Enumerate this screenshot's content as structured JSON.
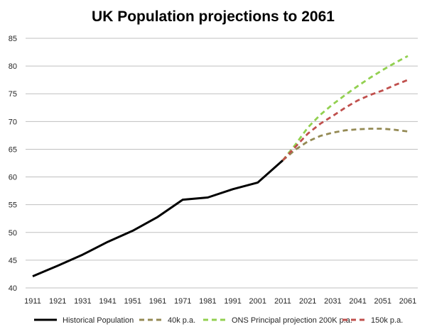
{
  "chart_data": {
    "type": "line",
    "title": "UK Population projections to 2061",
    "xlabel": "",
    "ylabel": "",
    "ylim": [
      40,
      85
    ],
    "yticks": [
      40,
      45,
      50,
      55,
      60,
      65,
      70,
      75,
      80,
      85
    ],
    "categories": [
      "1911",
      "1921",
      "1931",
      "1941",
      "1951",
      "1961",
      "1971",
      "1981",
      "1991",
      "2001",
      "2011",
      "2021",
      "2031",
      "2041",
      "2051",
      "2061"
    ],
    "grid": true,
    "legend_position": "bottom",
    "series": [
      {
        "name": "Historical Population",
        "color": "#000000",
        "dash": "solid",
        "x": [
          1911,
          1921,
          1931,
          1941,
          1951,
          1961,
          1971,
          1981,
          1991,
          2001,
          2011
        ],
        "values": [
          42.1,
          44.0,
          46.0,
          48.3,
          50.3,
          52.8,
          55.9,
          56.3,
          57.8,
          59.0,
          63.0
        ]
      },
      {
        "name": "40k p.a.",
        "color": "#948a54",
        "dash": "dashed",
        "x": [
          2011,
          2016,
          2021,
          2026,
          2031,
          2036,
          2041,
          2046,
          2051,
          2056,
          2061
        ],
        "values": [
          63.0,
          64.9,
          66.4,
          67.4,
          68.0,
          68.4,
          68.6,
          68.7,
          68.7,
          68.5,
          68.2
        ]
      },
      {
        "name": "ONS Principal projection 200K p.a.",
        "color": "#92d050",
        "dash": "dashed",
        "x": [
          2011,
          2016,
          2021,
          2026,
          2031,
          2036,
          2041,
          2046,
          2051,
          2056,
          2061
        ],
        "values": [
          63.0,
          65.8,
          68.9,
          71.2,
          73.1,
          74.8,
          76.4,
          77.9,
          79.3,
          80.6,
          81.8
        ]
      },
      {
        "name": "150k p.a.",
        "color": "#c0504d",
        "dash": "dashed",
        "x": [
          2011,
          2016,
          2021,
          2026,
          2031,
          2036,
          2041,
          2046,
          2051,
          2056,
          2061
        ],
        "values": [
          63.0,
          65.4,
          67.8,
          69.6,
          71.0,
          72.5,
          73.8,
          74.8,
          75.6,
          76.6,
          77.5
        ]
      }
    ]
  }
}
